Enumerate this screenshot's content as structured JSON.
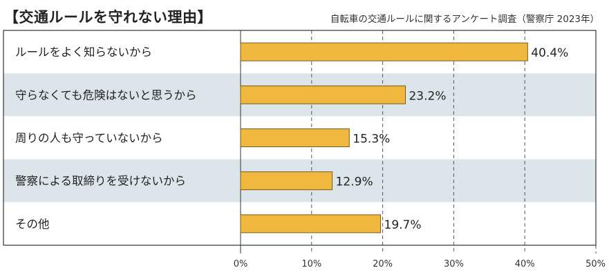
{
  "title": "【交通ルールを守れない理由】",
  "source": "自転車の交通ルールに関するアンケート調査（警察庁 2023年）",
  "chart_data": {
    "type": "bar",
    "orientation": "horizontal",
    "categories": [
      "ルールをよく知らないから",
      "守らなくても危険はないと思うから",
      "周りの人も守っていないから",
      "警察による取締りを受けないから",
      "その他"
    ],
    "values": [
      40.4,
      23.2,
      15.3,
      12.9,
      19.7
    ],
    "value_labels": [
      "40.4%",
      "23.2%",
      "15.3%",
      "12.9%",
      "19.7%"
    ],
    "xlim": [
      0,
      50
    ],
    "xticks": [
      "0%",
      "10%",
      "20%",
      "30%",
      "40%",
      "50%"
    ],
    "grid": "vertical-dashed",
    "legend": "none",
    "colors": {
      "bar": "#F0B83F",
      "bar_edge": "#7A5A14",
      "band": "#DCE5EA",
      "grid": "#555555"
    }
  }
}
